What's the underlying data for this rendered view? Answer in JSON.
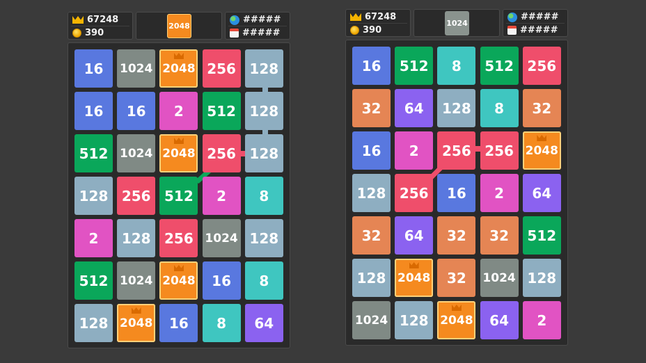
{
  "colors": {
    "2": "#e153c3",
    "8": "#3fc6c0",
    "16": "#5978df",
    "32": "#e58554",
    "64": "#8b62f0",
    "128": "#8eaec1",
    "256": "#ef4e6b",
    "512": "#0aa75a",
    "1024": "#808a85",
    "2048": "#f58a1f"
  },
  "left": {
    "score": "67248",
    "coins": "390",
    "badge": "2048",
    "global_rank": "#####",
    "daily_rank": "#####",
    "grid": [
      [
        "16",
        "1024",
        "2048",
        "256",
        "128"
      ],
      [
        "16",
        "16",
        "2",
        "512",
        "128"
      ],
      [
        "512",
        "1024",
        "2048",
        "256",
        "128"
      ],
      [
        "128",
        "256",
        "512",
        "2",
        "8"
      ],
      [
        "2",
        "128",
        "256",
        "1024",
        "128"
      ],
      [
        "512",
        "1024",
        "2048",
        "16",
        "8"
      ],
      [
        "128",
        "2048",
        "16",
        "8",
        "64"
      ]
    ]
  },
  "right": {
    "score": "67248",
    "coins": "390",
    "badge": "1024",
    "global_rank": "#####",
    "daily_rank": "#####",
    "grid": [
      [
        "16",
        "512",
        "8",
        "512",
        "256"
      ],
      [
        "32",
        "64",
        "128",
        "8",
        "32"
      ],
      [
        "16",
        "2",
        "256",
        "256",
        "2048"
      ],
      [
        "128",
        "256",
        "16",
        "2",
        "64"
      ],
      [
        "32",
        "64",
        "32",
        "32",
        "512"
      ],
      [
        "128",
        "2048",
        "32",
        "1024",
        "128"
      ],
      [
        "1024",
        "128",
        "2048",
        "64",
        "2"
      ]
    ]
  }
}
